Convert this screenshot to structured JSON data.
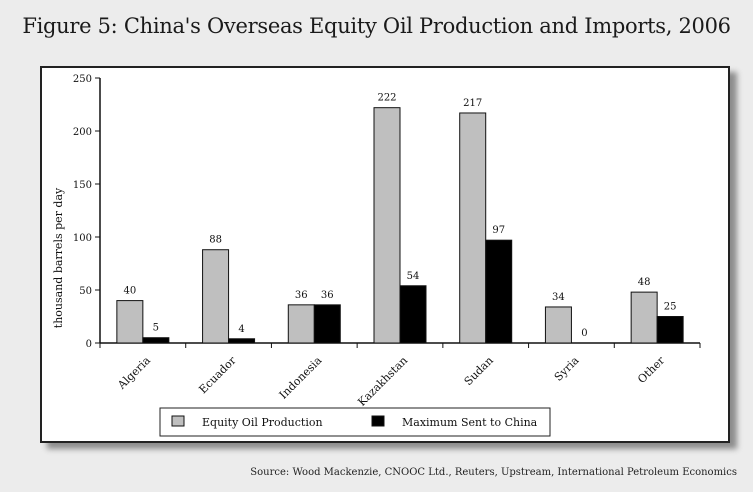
{
  "chart_data": {
    "type": "bar",
    "title": "Figure 5: China's Overseas Equity Oil Production and Imports, 2006",
    "ylabel": "thousand barrels per day",
    "xlabel": "",
    "categories": [
      "Algeria",
      "Ecuador",
      "Indonesia",
      "Kazakhstan",
      "Sudan",
      "Syria",
      "Other"
    ],
    "series": [
      {
        "name": "Equity Oil Production",
        "values": [
          40,
          88,
          36,
          222,
          217,
          34,
          48
        ],
        "labels": [
          "40",
          "88",
          "36",
          "222",
          "217",
          "34",
          "48"
        ]
      },
      {
        "name": "Maximum Sent to China",
        "values": [
          5,
          4,
          36,
          54,
          97,
          0,
          25
        ],
        "labels": [
          "5",
          "4",
          "36",
          "54",
          "97",
          "0",
          "25"
        ]
      }
    ],
    "yticks": [
      "0",
      "50",
      "100",
      "150",
      "200",
      "250"
    ],
    "ylim": [
      0,
      250
    ],
    "grid": false,
    "legend_position": "bottom",
    "source": "Source: Wood Mackenzie, CNOOC Ltd., Reuters, Upstream, International Petroleum Economics"
  },
  "colors": {
    "equity": "#bfbfbf",
    "china": "#000000"
  }
}
